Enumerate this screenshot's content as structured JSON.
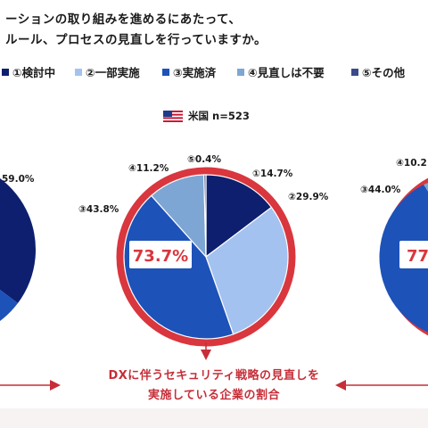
{
  "title_lines": [
    "ーションの取り組みを進めるにあたって、",
    "ルール、プロセスの見直しを行っていますか。"
  ],
  "legend": [
    {
      "label": "①検討中",
      "color": "#0d1f6e"
    },
    {
      "label": "②一部実施",
      "color": "#a3c2f0"
    },
    {
      "label": "③実施済",
      "color": "#1d52b8"
    },
    {
      "label": "④見直しは不要",
      "color": "#7ea6d4"
    },
    {
      "label": "⑤その他",
      "color": "#3a4a8a"
    }
  ],
  "colors": {
    "ring": "#d9363e",
    "callout_text": "#d9363e",
    "accent": "#c62e38"
  },
  "country_label": "米国 n=523",
  "chart_data": [
    {
      "type": "pie",
      "labels": [
        "59.0%"
      ],
      "highlight_text": ""
    },
    {
      "type": "pie",
      "categories": [
        "①",
        "②",
        "③",
        "④",
        "⑤"
      ],
      "values": [
        14.7,
        29.9,
        43.8,
        11.2,
        0.4
      ],
      "labels": [
        "①14.7%",
        "②29.9%",
        "③43.8%",
        "④11.2%",
        "⑤0.4%"
      ],
      "highlight_text": "73.7%"
    },
    {
      "type": "pie",
      "labels": [
        "④10.2",
        "③44.0%"
      ],
      "highlight_text": "77"
    }
  ],
  "footnote_lines": [
    "DXに伴うセキュリティ戦略の見直しを",
    "実施している企業の割合"
  ]
}
